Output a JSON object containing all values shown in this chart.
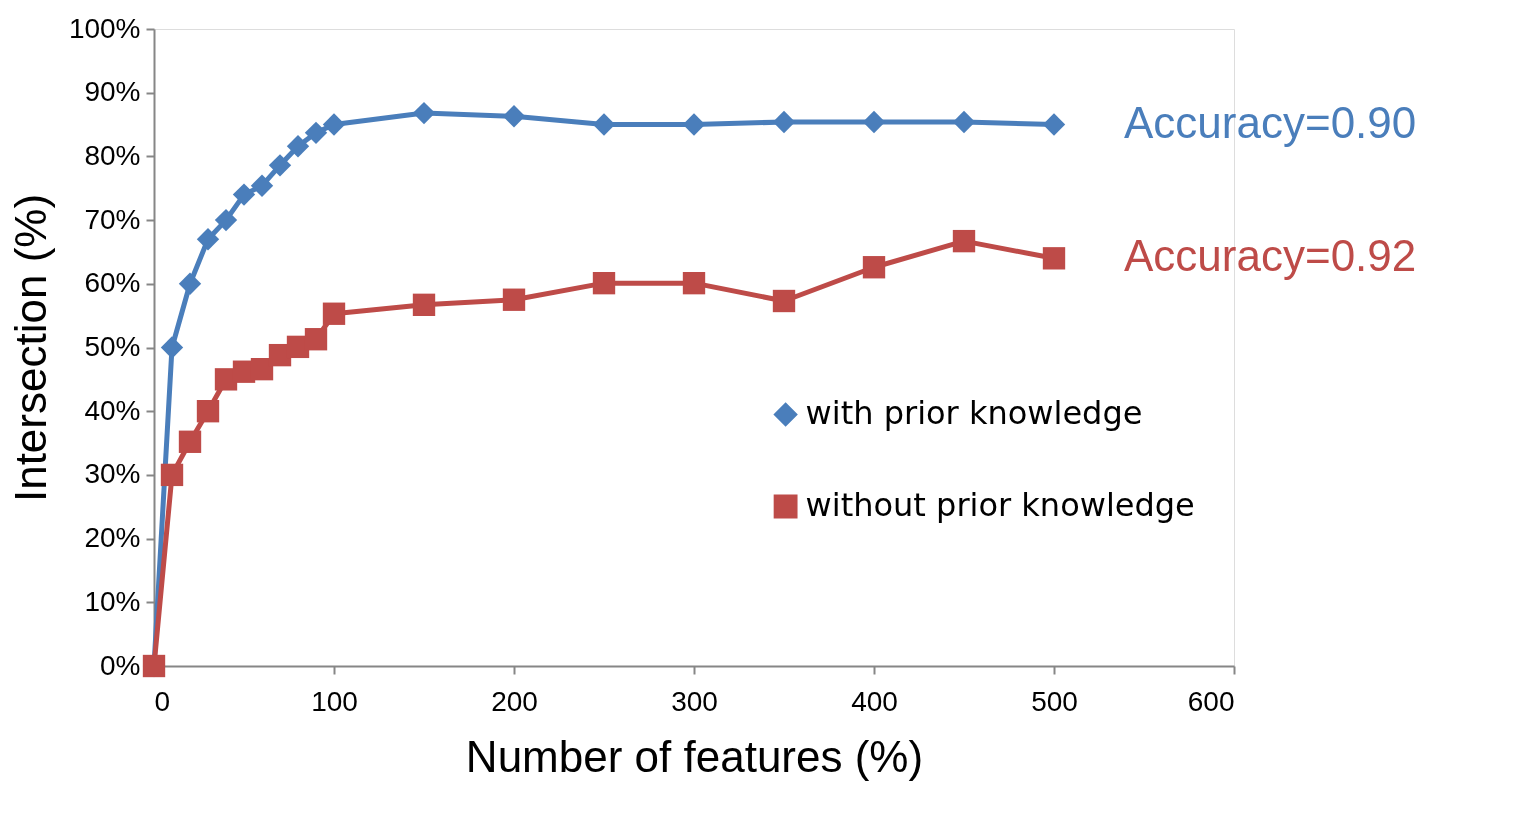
{
  "chart_data": {
    "type": "line",
    "xlabel": "Number of features (%)",
    "ylabel": "Intersection (%)",
    "x": [
      0,
      10,
      20,
      30,
      40,
      50,
      60,
      70,
      80,
      90,
      100,
      150,
      200,
      250,
      300,
      350,
      400,
      450,
      500
    ],
    "series": [
      {
        "name": "with prior knowledge",
        "color": "#4a7ebb",
        "marker": "diamond",
        "values": [
          0,
          50,
          60,
          67,
          70,
          74,
          75.4,
          78.6,
          81.6,
          83.7,
          85,
          86.8,
          86.3,
          85,
          85,
          85.4,
          85.4,
          85.4,
          85
        ]
      },
      {
        "name": "without prior knowledge",
        "color": "#be4b48",
        "marker": "square",
        "values": [
          0,
          30,
          35.2,
          40,
          45,
          46.2,
          46.6,
          48.8,
          50.1,
          51.3,
          55.3,
          56.7,
          57.5,
          60.1,
          60.1,
          57.3,
          62.6,
          66.7,
          64
        ]
      }
    ],
    "annotations": [
      "Accuracy=0.90",
      "Accuracy=0.92"
    ],
    "xlim": [
      0,
      600
    ],
    "xticks": [
      0,
      100,
      200,
      300,
      400,
      500,
      600
    ],
    "ylim": [
      0,
      100
    ],
    "yticks": [
      {
        "value": 0,
        "label": "0%"
      },
      {
        "value": 10,
        "label": "10%"
      },
      {
        "value": 20,
        "label": "20%"
      },
      {
        "value": 30,
        "label": "30%"
      },
      {
        "value": 40,
        "label": "40%"
      },
      {
        "value": 50,
        "label": "50%"
      },
      {
        "value": 60,
        "label": "60%"
      },
      {
        "value": 70,
        "label": "70%"
      },
      {
        "value": 80,
        "label": "80%"
      },
      {
        "value": 90,
        "label": "90%"
      },
      {
        "value": 100,
        "label": "100%"
      }
    ],
    "grid": false,
    "legend": "right",
    "line_style": "solid"
  }
}
